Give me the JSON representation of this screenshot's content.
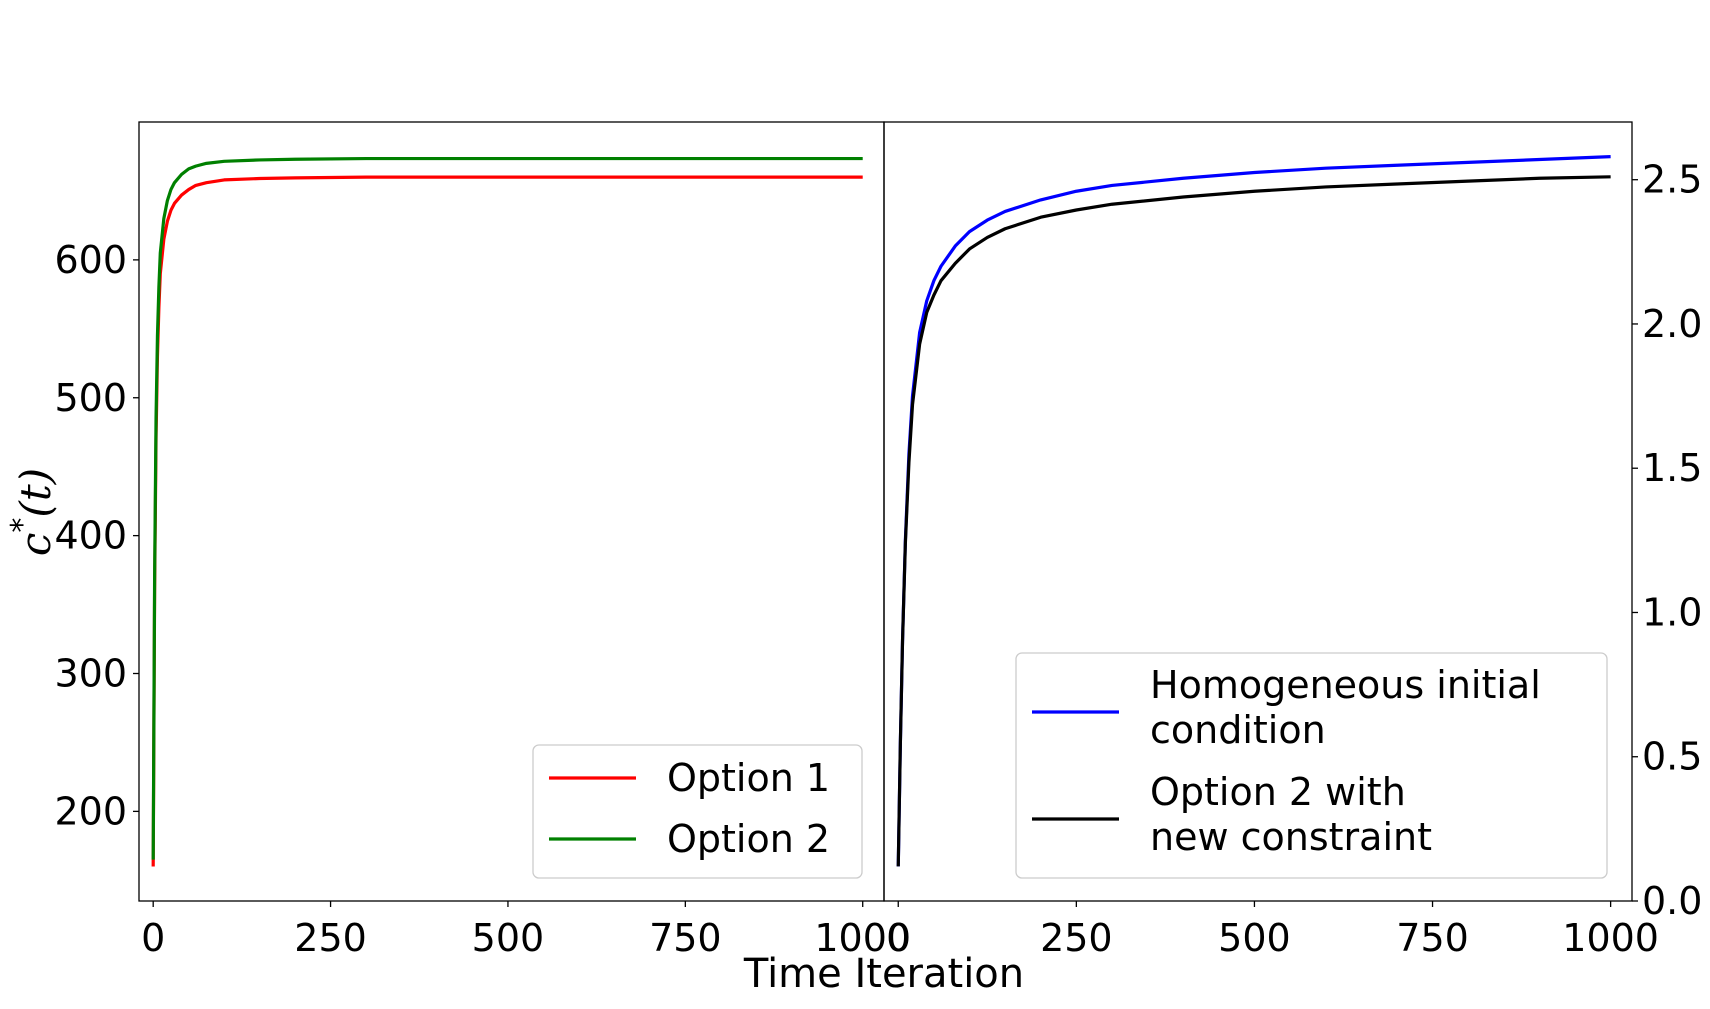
{
  "chart_data": [
    {
      "type": "line",
      "panel": "left",
      "xlabel": "Time Iteration",
      "ylabel": "c*(t)",
      "ylabel_parts": {
        "base": "c",
        "sup": "*",
        "arg": "(t)"
      },
      "xlim": [
        -20,
        1030
      ],
      "ylim": [
        135,
        700
      ],
      "xticks": [
        0,
        250,
        500,
        750,
        1000
      ],
      "xtick_labels": [
        "0",
        "250",
        "500",
        "750",
        "1000"
      ],
      "yticks": [
        200,
        300,
        400,
        500,
        600
      ],
      "ytick_labels": [
        "200",
        "300",
        "400",
        "500",
        "600"
      ],
      "legend_position": "lower-right",
      "grid": false,
      "series": [
        {
          "name": "Option 1",
          "color": "#ff0000",
          "x": [
            0,
            2,
            4,
            6,
            8,
            10,
            15,
            20,
            25,
            30,
            40,
            50,
            60,
            75,
            100,
            150,
            200,
            300,
            500,
            750,
            1000
          ],
          "y": [
            160,
            360,
            470,
            530,
            565,
            590,
            615,
            628,
            636,
            641,
            647,
            651,
            654,
            656,
            658,
            659,
            659.5,
            660,
            660,
            660,
            660
          ]
        },
        {
          "name": "Option 2",
          "color": "#008000",
          "x": [
            0,
            2,
            4,
            6,
            8,
            10,
            15,
            20,
            25,
            30,
            40,
            50,
            60,
            75,
            100,
            150,
            200,
            300,
            500,
            750,
            1000
          ],
          "y": [
            165,
            370,
            485,
            545,
            580,
            605,
            630,
            643,
            651,
            656,
            662,
            666,
            668,
            670,
            671.5,
            672.5,
            673,
            673.5,
            673.5,
            673.5,
            673.5
          ]
        }
      ]
    },
    {
      "type": "line",
      "panel": "right",
      "xlabel": "Time Iteration",
      "xlim": [
        -20,
        1030
      ],
      "ylim": [
        0,
        2.7
      ],
      "y_axis_side": "right",
      "xticks": [
        0,
        250,
        500,
        750,
        1000
      ],
      "xtick_labels": [
        "0",
        "250",
        "500",
        "750",
        "1000"
      ],
      "yticks": [
        0.0,
        0.5,
        1.0,
        1.5,
        2.0,
        2.5
      ],
      "ytick_labels": [
        "0.0",
        "0.5",
        "1.0",
        "1.5",
        "2.0",
        "2.5"
      ],
      "legend_position": "lower-right",
      "grid": false,
      "series": [
        {
          "name": "Homogeneous initial condition",
          "name_lines": [
            "Homogeneous initial",
            "condition"
          ],
          "color": "#0000ff",
          "x": [
            0,
            3,
            6,
            10,
            15,
            20,
            30,
            40,
            50,
            60,
            80,
            100,
            125,
            150,
            200,
            250,
            300,
            400,
            500,
            600,
            700,
            800,
            900,
            1000
          ],
          "y": [
            0.12,
            0.55,
            0.9,
            1.25,
            1.55,
            1.75,
            1.97,
            2.08,
            2.15,
            2.2,
            2.27,
            2.32,
            2.36,
            2.39,
            2.43,
            2.46,
            2.48,
            2.505,
            2.525,
            2.54,
            2.55,
            2.56,
            2.57,
            2.58
          ]
        },
        {
          "name": "Option 2 with new constraint",
          "name_lines": [
            "Option 2 with",
            "new constraint"
          ],
          "color": "#000000",
          "x": [
            0,
            3,
            6,
            10,
            15,
            20,
            30,
            40,
            50,
            60,
            80,
            100,
            125,
            150,
            200,
            250,
            300,
            400,
            500,
            600,
            700,
            800,
            900,
            1000
          ],
          "y": [
            0.12,
            0.55,
            0.9,
            1.24,
            1.52,
            1.72,
            1.93,
            2.04,
            2.1,
            2.15,
            2.21,
            2.26,
            2.3,
            2.33,
            2.37,
            2.395,
            2.415,
            2.44,
            2.46,
            2.475,
            2.485,
            2.495,
            2.505,
            2.51
          ]
        }
      ]
    }
  ],
  "shared_xlabel": "Time Iteration"
}
